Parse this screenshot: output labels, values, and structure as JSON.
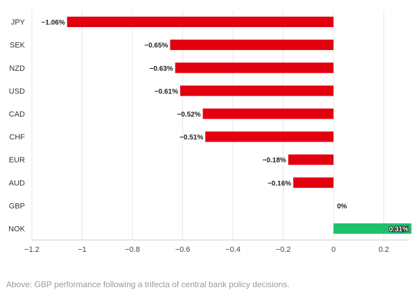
{
  "chart_data": {
    "type": "bar",
    "orientation": "horizontal",
    "categories": [
      "JPY",
      "SEK",
      "NZD",
      "USD",
      "CAD",
      "CHF",
      "EUR",
      "AUD",
      "GBP",
      "NOK"
    ],
    "values": [
      -1.06,
      -0.65,
      -0.63,
      -0.61,
      -0.52,
      -0.51,
      -0.18,
      -0.16,
      0,
      0.31
    ],
    "data_labels": [
      "−1.06%",
      "−0.65%",
      "−0.63%",
      "−0.61%",
      "−0.52%",
      "−0.51%",
      "−0.18%",
      "−0.16%",
      "0%",
      "0.31%"
    ],
    "xlim": [
      -1.2,
      0.3
    ],
    "xticks": [
      -1.2,
      -1,
      -0.8,
      -0.6,
      -0.4,
      -0.2,
      0,
      0.2
    ],
    "xtick_labels": [
      "−1.2",
      "−1",
      "−0.8",
      "−0.6",
      "−0.4",
      "−0.2",
      "0",
      "0.2"
    ],
    "grid": true,
    "colors": {
      "negative": "#e3000f",
      "positive": "#1ec16a",
      "grid": "#e6e6e6",
      "axis": "#cccccc"
    },
    "title": "",
    "xlabel": "",
    "ylabel": ""
  },
  "caption": "Above: GBP performance following a trifecta of central bank policy decisions."
}
